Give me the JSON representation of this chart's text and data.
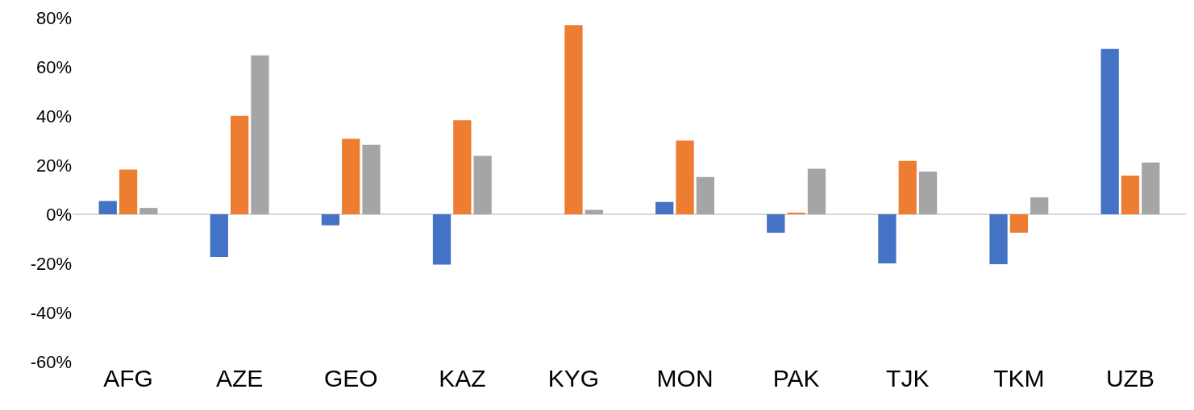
{
  "chart_data": {
    "type": "bar",
    "categories": [
      "AFG",
      "AZE",
      "GEO",
      "KAZ",
      "KYG",
      "MON",
      "PAK",
      "TJK",
      "TKM",
      "UZB"
    ],
    "series": [
      {
        "color": "#4472c4",
        "values": [
          5.4,
          -17.4,
          -4.5,
          -20.5,
          0,
          5,
          -7.5,
          -20,
          -20.3,
          67.3
        ]
      },
      {
        "color": "#ed7d31",
        "values": [
          18.2,
          40.1,
          30.7,
          38.3,
          77,
          30,
          0.5,
          21.7,
          -7.5,
          15.7
        ]
      },
      {
        "color": "#a5a5a5",
        "values": [
          2.6,
          64.7,
          28.3,
          23.8,
          1.8,
          15.2,
          18.5,
          17.4,
          6.9,
          21.1
        ]
      }
    ],
    "ylim": [
      -60,
      80
    ],
    "yticks": [
      {
        "value": -60,
        "label": "-60%"
      },
      {
        "value": -40,
        "label": "-40%"
      },
      {
        "value": -20,
        "label": "-20%"
      },
      {
        "value": 0,
        "label": "0%"
      },
      {
        "value": 20,
        "label": "20%"
      },
      {
        "value": 40,
        "label": "40%"
      },
      {
        "value": 60,
        "label": "60%"
      },
      {
        "value": 80,
        "label": "80%"
      }
    ],
    "ref_lines": [
      {
        "axis": "y",
        "value": 0,
        "color": "#d9d9d9"
      }
    ],
    "grid": false
  }
}
